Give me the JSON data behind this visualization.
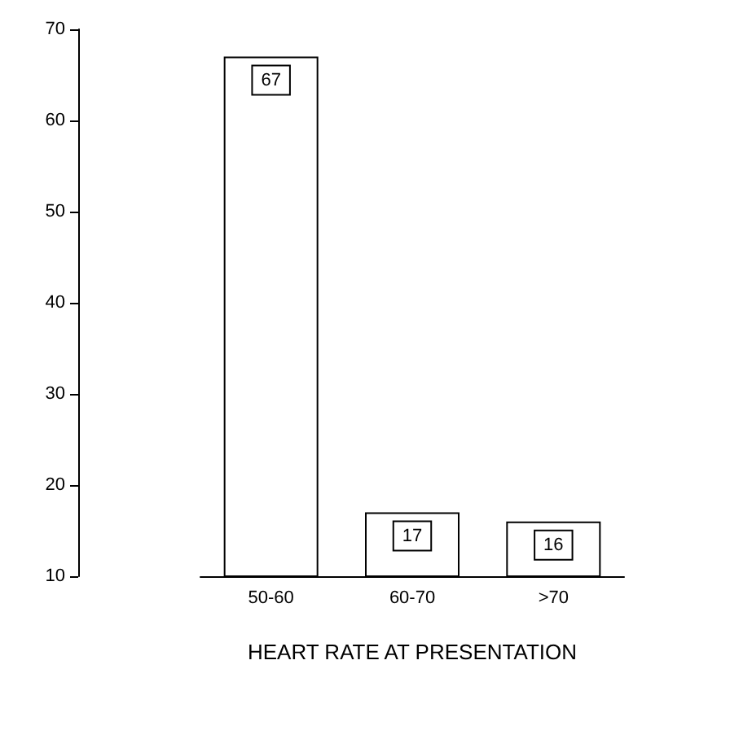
{
  "chart_data": {
    "type": "bar",
    "xlabel": "HEART RATE AT PRESENTATION",
    "categories": [
      "50-60",
      "60-70",
      ">70"
    ],
    "values": [
      67,
      17,
      16
    ],
    "color": "#ffffff",
    "ylim": [
      10,
      70
    ],
    "yticks": [
      10,
      20,
      30,
      40,
      50,
      60,
      70
    ],
    "grid": false,
    "data_labels": true
  }
}
